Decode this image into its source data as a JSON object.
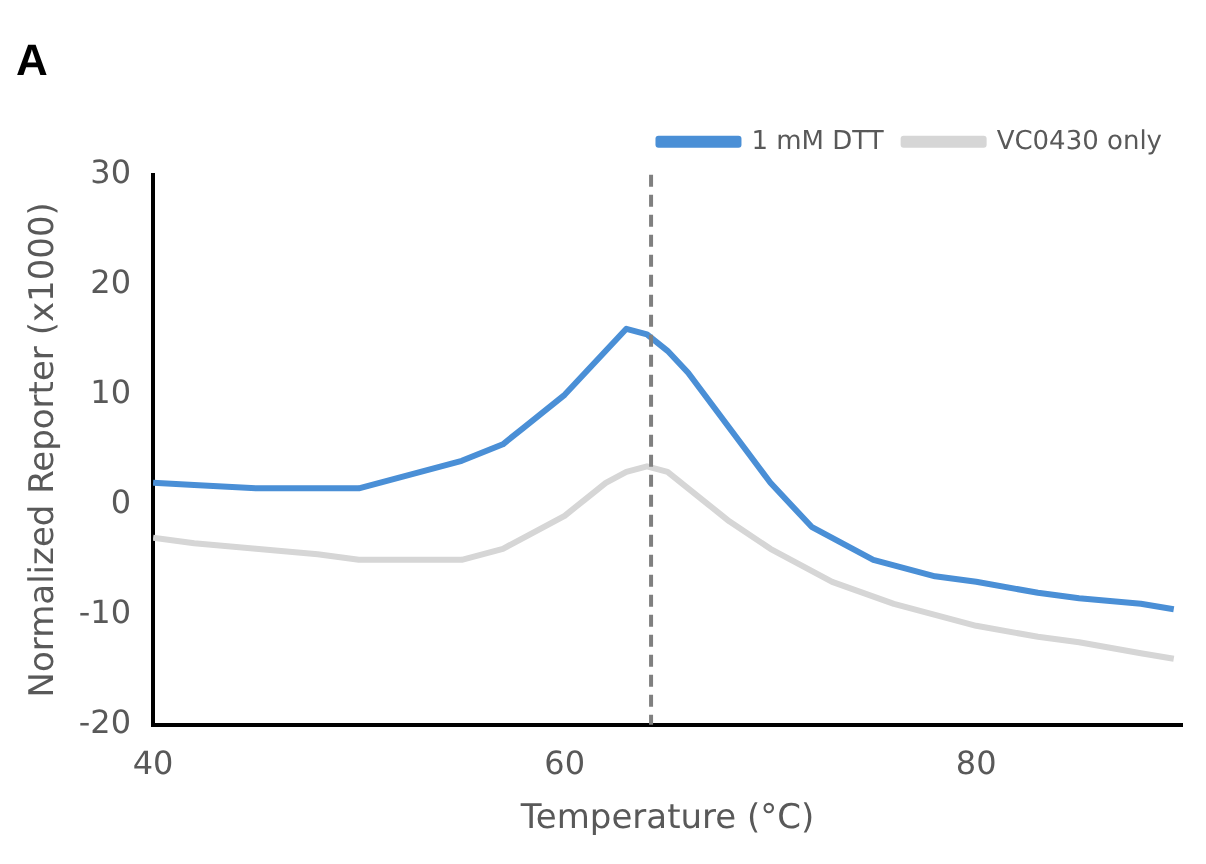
{
  "chart_data": {
    "type": "line",
    "title": "A",
    "xlabel": "Temperature (°C)",
    "ylabel": "Normalized Reporter (x1000)",
    "xlim": [
      40,
      90
    ],
    "xticks": [
      40,
      60,
      80
    ],
    "ylim": [
      -20,
      30
    ],
    "yticks": [
      -20,
      -10,
      0,
      10,
      20,
      30
    ],
    "grid": false,
    "legend": "top right",
    "marker": "none",
    "series": [
      {
        "name": "1 mM DTT",
        "color": "#4a8fd6",
        "x": [
          40,
          42,
          45,
          48,
          50,
          52,
          55,
          57,
          58,
          60,
          61,
          62,
          63,
          64,
          65,
          66,
          67,
          68,
          69,
          70,
          72,
          74,
          75,
          78,
          80,
          83,
          85,
          88,
          89.6
        ],
        "values": [
          2,
          1.8,
          1.5,
          1.5,
          1.5,
          2.5,
          4,
          5.5,
          7,
          10,
          12,
          14,
          16,
          15.5,
          14,
          12,
          9.5,
          7,
          4.5,
          2,
          -2,
          -4,
          -5,
          -6.5,
          -7,
          -8,
          -8.5,
          -9,
          -9.5
        ]
      },
      {
        "name": "VC0430 only",
        "color": "#d6d6d6",
        "x": [
          40,
          42,
          45,
          48,
          50,
          52,
          55,
          57,
          58,
          60,
          61,
          62,
          63,
          64,
          65,
          66,
          67,
          68,
          70,
          72,
          73,
          76,
          78,
          80,
          83,
          85,
          88,
          89.6
        ],
        "values": [
          -3,
          -3.5,
          -4,
          -4.5,
          -5,
          -5,
          -5,
          -4,
          -3,
          -1,
          0.5,
          2,
          3,
          3.5,
          3,
          1.5,
          0,
          -1.5,
          -4,
          -6,
          -7,
          -9,
          -10,
          -11,
          -12,
          -12.5,
          -13.5,
          -14
        ]
      }
    ],
    "ref_lines": [
      {
        "axis": "x",
        "value": 64.2,
        "color": "#808080",
        "line_style": "dashed"
      }
    ]
  }
}
